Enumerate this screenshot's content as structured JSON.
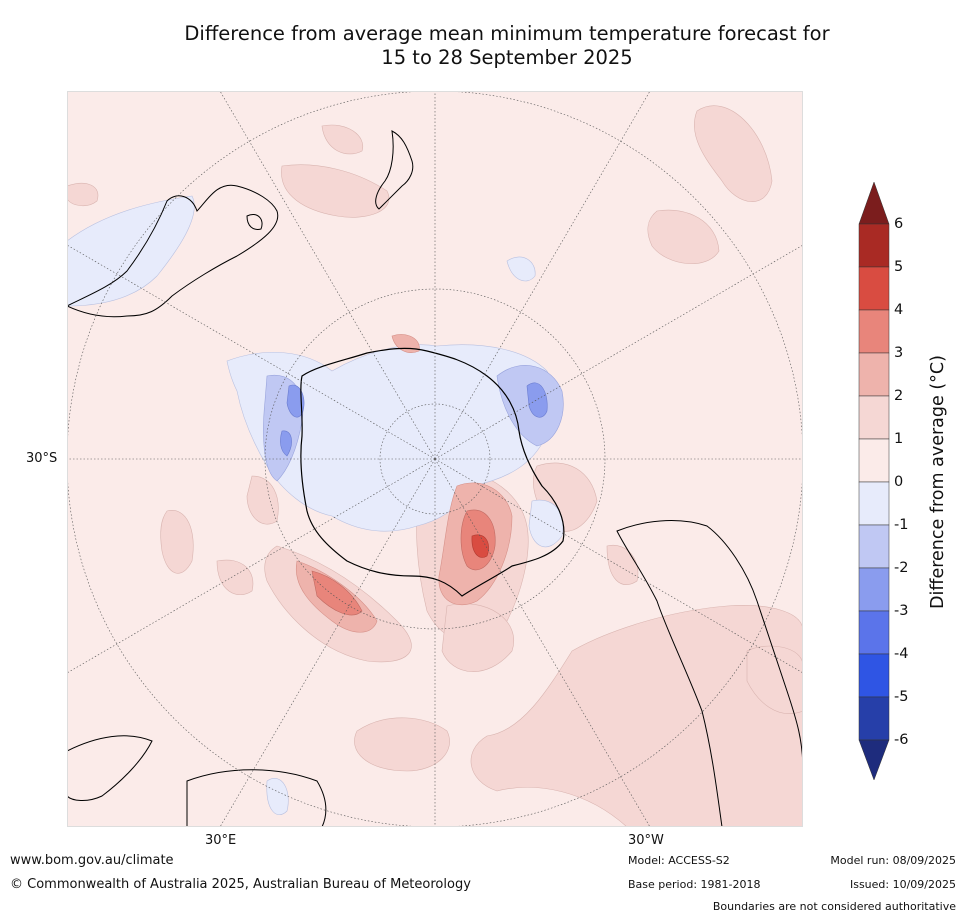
{
  "title_line1": "Difference from average mean minimum temperature forecast for",
  "title_line2": "15 to 28 September 2025",
  "map": {
    "projection": "south-polar stereographic",
    "lat_label": "30°S",
    "lon_labels": {
      "east": "30°E",
      "west": "30°W"
    }
  },
  "colorbar": {
    "label": "Difference from average (°C)",
    "ticks": [
      "6",
      "5",
      "4",
      "3",
      "2",
      "1",
      "0",
      "-1",
      "-2",
      "-3",
      "-4",
      "-5",
      "-6"
    ],
    "colors": {
      "above_6": "#7b1d1d",
      "5_to_6": "#a92a24",
      "4_to_5": "#d94c41",
      "3_to_4": "#e8857b",
      "2_to_3": "#eeb3ac",
      "1_to_2": "#f5d7d4",
      "0_to_1": "#fbebe9",
      "m1_to_0": "#e7ebfb",
      "m2_to_m1": "#c0c8f3",
      "m3_to_m2": "#8a9cee",
      "m4_to_m3": "#5b74ea",
      "m5_to_m4": "#2f55e4",
      "m6_to_m5": "#263fa9",
      "below_m6": "#1e2c7d"
    }
  },
  "footer": {
    "website": "www.bom.gov.au/climate",
    "copyright": "© Commonwealth of Australia 2025, Australian Bureau of Meteorology",
    "model": "Model: ACCESS-S2",
    "base_period": "Base period: 1981-2018",
    "model_run": "Model run: 08/09/2025",
    "issued": "Issued: 10/09/2025",
    "disclaimer": "Boundaries are not considered authoritative"
  }
}
